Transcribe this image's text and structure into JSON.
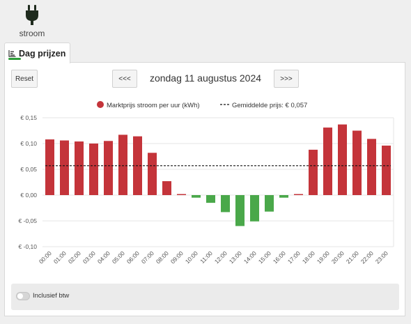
{
  "app": {
    "brand_label": "stroom",
    "brand_icon": "plug-icon"
  },
  "tabs": [
    {
      "label": "Dag prijzen",
      "icon": "chart-bars-icon",
      "active": true
    }
  ],
  "controls": {
    "reset_label": "Reset",
    "prev_label": "<<<",
    "next_label": ">>>",
    "date_label": "zondag 11 augustus 2024"
  },
  "toggle": {
    "label": "Inclusief btw",
    "on": false
  },
  "colors": {
    "positive": "#c4343a",
    "negative": "#4aa84a",
    "accent": "#2e9e3a"
  },
  "chart_data": {
    "type": "bar",
    "categories": [
      "00:00",
      "01:00",
      "02:00",
      "03:00",
      "04:00",
      "05:00",
      "06:00",
      "07:00",
      "08:00",
      "09:00",
      "10:00",
      "11:00",
      "12:00",
      "13:00",
      "14:00",
      "15:00",
      "16:00",
      "17:00",
      "18:00",
      "19:00",
      "20:00",
      "21:00",
      "22:00",
      "23:00"
    ],
    "series": [
      {
        "name": "Marktprijs stroom per uur (kWh)",
        "values": [
          0.108,
          0.106,
          0.104,
          0.1,
          0.105,
          0.117,
          0.114,
          0.082,
          0.027,
          0.002,
          -0.005,
          -0.015,
          -0.033,
          -0.06,
          -0.051,
          -0.032,
          -0.005,
          0.002,
          0.088,
          0.131,
          0.137,
          0.125,
          0.109,
          0.096
        ]
      }
    ],
    "average": {
      "label": "Gemiddelde prijs: € 0,057",
      "value": 0.057
    },
    "ylim": [
      -0.1,
      0.15
    ],
    "yticks": [
      -0.1,
      -0.05,
      0.0,
      0.05,
      0.1,
      0.15
    ],
    "ytick_labels": [
      "€ -0,10",
      "€ -0,05",
      "€ 0,00",
      "€ 0,05",
      "€ 0,10",
      "€ 0,15"
    ],
    "legend_position": "top-center",
    "grid": true
  }
}
